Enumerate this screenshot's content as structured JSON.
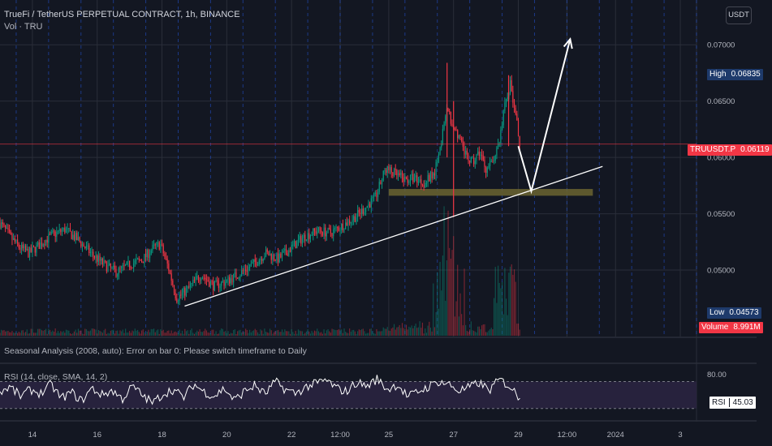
{
  "header": {
    "symbol_title": "TrueFi / TetherUS PERPETUAL CONTRACT, 1h, BINANCE",
    "volume_label": "Vol · TRU",
    "currency_button": "USDT"
  },
  "indicators": {
    "seasonal_error": "Seasonal Analysis (2008, auto): Error on bar 0: Please switch timeframe to Daily",
    "rsi_title": "RSI (14, close, SMA, 14, 2)"
  },
  "price_tags": {
    "high_label": "High",
    "high_value": "0.06835",
    "last_label": "TRUUSDT.P",
    "last_value": "0.06119",
    "low_label": "Low",
    "low_value": "0.04573",
    "volume_label": "Volume",
    "volume_value": "8.991M",
    "rsi_label": "RSI",
    "rsi_value": "45.03"
  },
  "colors": {
    "background": "#131722",
    "up": "#089981",
    "down": "#f23645",
    "grid": "#2a2e39",
    "session_line": "#2962ff",
    "trendline": "#ffffff",
    "support_zone": "#6b6430",
    "rsi_band": "#2a2440"
  },
  "chart_data": {
    "type": "candlestick",
    "title": "TrueFi / TetherUS PERPETUAL CONTRACT, 1h, BINANCE",
    "y_axis": {
      "ticks": [
        "0.07000",
        "0.06500",
        "0.06000",
        "0.05500",
        "0.05000"
      ],
      "tick_values": [
        0.07,
        0.065,
        0.06,
        0.055,
        0.05
      ],
      "range": [
        0.0441,
        0.0734
      ]
    },
    "x_axis": {
      "tick_labels": [
        "14",
        "16",
        "18",
        "20",
        "22",
        "12:00",
        "25",
        "27",
        "29",
        "12:00",
        "2024",
        "3"
      ],
      "range_days": [
        "Dec 13",
        "Jan 3"
      ]
    },
    "high": 0.06835,
    "low": 0.04573,
    "last": 0.06119,
    "last_volume": "8.991M",
    "price_path": [
      [
        13.0,
        0.0542
      ],
      [
        13.3,
        0.053
      ],
      [
        13.6,
        0.052
      ],
      [
        13.9,
        0.0515
      ],
      [
        14.2,
        0.0522
      ],
      [
        14.6,
        0.0531
      ],
      [
        15.0,
        0.0536
      ],
      [
        15.4,
        0.0527
      ],
      [
        15.8,
        0.0515
      ],
      [
        16.2,
        0.0505
      ],
      [
        16.6,
        0.0498
      ],
      [
        17.0,
        0.0505
      ],
      [
        17.4,
        0.0509
      ],
      [
        17.7,
        0.0519
      ],
      [
        17.95,
        0.0523
      ],
      [
        18.2,
        0.0502
      ],
      [
        18.45,
        0.0475
      ],
      [
        18.8,
        0.0483
      ],
      [
        19.2,
        0.0496
      ],
      [
        19.6,
        0.0486
      ],
      [
        20.0,
        0.049
      ],
      [
        20.4,
        0.0497
      ],
      [
        20.8,
        0.0505
      ],
      [
        21.2,
        0.0515
      ],
      [
        21.6,
        0.051
      ],
      [
        22.0,
        0.052
      ],
      [
        22.4,
        0.053
      ],
      [
        22.8,
        0.0535
      ],
      [
        23.2,
        0.0533
      ],
      [
        23.6,
        0.054
      ],
      [
        24.0,
        0.0548
      ],
      [
        24.3,
        0.0556
      ],
      [
        24.6,
        0.0565
      ],
      [
        24.9,
        0.059
      ],
      [
        25.2,
        0.0585
      ],
      [
        25.5,
        0.058
      ],
      [
        25.8,
        0.0582
      ],
      [
        26.1,
        0.0577
      ],
      [
        26.4,
        0.0586
      ],
      [
        26.6,
        0.0612
      ],
      [
        26.8,
        0.064
      ],
      [
        27.0,
        0.063
      ],
      [
        27.2,
        0.0615
      ],
      [
        27.4,
        0.06
      ],
      [
        27.6,
        0.0595
      ],
      [
        27.8,
        0.0605
      ],
      [
        28.0,
        0.059
      ],
      [
        28.2,
        0.0595
      ],
      [
        28.4,
        0.0612
      ],
      [
        28.6,
        0.065
      ],
      [
        28.75,
        0.0665
      ],
      [
        28.9,
        0.064
      ],
      [
        29.05,
        0.06119
      ]
    ],
    "wicks": [
      {
        "x": 26.8,
        "high": 0.0684,
        "low": 0.06
      },
      {
        "x": 27.0,
        "high": 0.065,
        "low": 0.0547
      },
      {
        "x": 28.7,
        "high": 0.0673,
        "low": 0.061
      }
    ],
    "annotations": {
      "trendline": {
        "from": [
          18.7,
          0.0468
        ],
        "to": [
          31.6,
          0.0592
        ]
      },
      "support_zone": {
        "x": [
          25.0,
          31.3
        ],
        "y": [
          0.0566,
          0.0572
        ]
      },
      "path_arrow": [
        [
          29.0,
          0.061
        ],
        [
          29.4,
          0.057
        ],
        [
          30.6,
          0.0705
        ]
      ],
      "high_marker": {
        "x": 28.7,
        "y": 0.06835
      }
    },
    "rsi": {
      "levels": [
        "80.00"
      ],
      "upper_band": 70,
      "lower_band": 30,
      "current": 45.03,
      "series": [
        55,
        62,
        48,
        58,
        52,
        66,
        45,
        54,
        41,
        60,
        50,
        57,
        44,
        63,
        49,
        38,
        52,
        58,
        46,
        66,
        55,
        48,
        60,
        42,
        56,
        64,
        51,
        70,
        58,
        52,
        62,
        67,
        72,
        60,
        55,
        69,
        63,
        74,
        58,
        66,
        47,
        55,
        62,
        70,
        66,
        56,
        61,
        68,
        57,
        73,
        63,
        45
      ]
    },
    "volume": {
      "baseline_note": "histogram bars at bottom of price pane",
      "spike_x": [
        26.7,
        27.0,
        28.6
      ]
    }
  }
}
